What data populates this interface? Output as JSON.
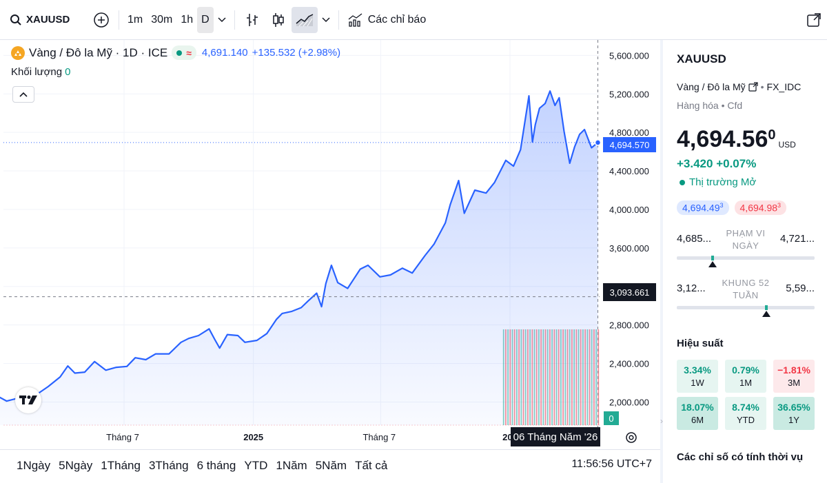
{
  "toolbar": {
    "symbol": "XAUUSD",
    "intervals": [
      "1m",
      "30m",
      "1h",
      "D"
    ],
    "active_interval": "D",
    "indicators_label": "Các chỉ báo"
  },
  "legend": {
    "title": "Vàng / Đô la Mỹ · 1D · ICE",
    "last_price": "4,691.140",
    "change": "+135.532 (+2.98%)",
    "volume_label": "Khối lượng",
    "volume_value": "0"
  },
  "chart_data": {
    "type": "area",
    "series": [
      {
        "x": [
          "2024-01-02",
          "2024-01-16",
          "2024-02-01",
          "2024-02-15",
          "2024-03-01",
          "2024-03-15",
          "2024-04-01",
          "2024-04-12",
          "2024-04-22",
          "2024-05-06",
          "2024-05-20",
          "2024-06-05",
          "2024-06-20",
          "2024-07-05",
          "2024-07-17",
          "2024-08-01",
          "2024-08-15",
          "2024-09-03",
          "2024-09-20",
          "2024-10-01",
          "2024-10-15",
          "2024-10-30",
          "2024-11-07",
          "2024-11-14",
          "2024-11-25",
          "2024-12-10",
          "2024-12-20",
          "2025-01-06",
          "2025-01-20",
          "2025-02-03",
          "2025-02-11",
          "2025-02-24",
          "2025-03-10",
          "2025-03-20",
          "2025-04-01",
          "2025-04-08",
          "2025-04-14",
          "2025-04-22",
          "2025-05-01",
          "2025-05-15",
          "2025-06-02",
          "2025-06-13",
          "2025-06-30",
          "2025-07-15",
          "2025-08-01",
          "2025-08-15",
          "2025-09-02",
          "2025-09-15",
          "2025-10-01",
          "2025-10-08",
          "2025-10-20",
          "2025-10-28",
          "2025-11-12",
          "2025-11-28",
          "2025-12-10",
          "2025-12-26",
          "2026-01-06",
          "2026-01-16",
          "2026-01-28",
          "2026-02-02",
          "2026-02-06",
          "2026-02-12",
          "2026-02-20",
          "2026-02-27",
          "2026-03-06",
          "2026-03-12",
          "2026-03-19",
          "2026-03-27",
          "2026-04-03",
          "2026-04-10",
          "2026-04-17",
          "2026-04-27",
          "2026-05-06"
        ],
        "y": [
          2065,
          2010,
          2040,
          2005,
          2090,
          2160,
          2260,
          2375,
          2300,
          2310,
          2420,
          2330,
          2360,
          2370,
          2460,
          2440,
          2500,
          2500,
          2620,
          2660,
          2690,
          2760,
          2650,
          2560,
          2700,
          2690,
          2620,
          2640,
          2710,
          2860,
          2920,
          2940,
          2980,
          3050,
          3130,
          2990,
          3230,
          3420,
          3240,
          3180,
          3380,
          3420,
          3300,
          3320,
          3390,
          3340,
          3520,
          3640,
          3860,
          4050,
          4300,
          3960,
          4200,
          4170,
          4280,
          4510,
          4450,
          4620,
          5180,
          4700,
          4880,
          5050,
          5100,
          5230,
          5080,
          5160,
          4810,
          4480,
          4650,
          4780,
          4830,
          4640,
          4694.57
        ]
      }
    ],
    "ylim": [
      1760,
      5760
    ],
    "yticks": [
      "5,600.000",
      "5,200.000",
      "4,800.000",
      "4,400.000",
      "4,000.000",
      "3,600.000",
      "3,200.000",
      "2,800.000",
      "2,400.000",
      "2,000.000"
    ],
    "xticks": [
      {
        "label": "Tháng 7",
        "date": "2024-07-01"
      },
      {
        "label": "2025",
        "date": "2025-01-01"
      },
      {
        "label": "Tháng 7",
        "date": "2025-07-01"
      },
      {
        "label": "202",
        "date": "2026-01-01"
      }
    ],
    "current_price_label": "4,694.570",
    "crosshair_price_label": "3,093.661",
    "crosshair_price": 3093.661,
    "crosshair_date": "2026-05-06",
    "crosshair_date_label": "06 Tháng Năm '26",
    "volume_label": "0",
    "volume_range": [
      "2025-12-22",
      "2026-05-06"
    ],
    "colors": {
      "line": "#2962ff",
      "fill": "#2962ff",
      "up": "#22ab94",
      "down": "#f23645"
    }
  },
  "ranges": [
    "1Ngày",
    "5Ngày",
    "1Tháng",
    "3Tháng",
    "6 tháng",
    "YTD",
    "1Năm",
    "5Năm",
    "Tất cả"
  ],
  "clock": "11:56:56 UTC+7",
  "panel": {
    "symbol": "XAUUSD",
    "description": "Vàng / Đô la Mỹ",
    "source": "FX_IDC",
    "category": "Hàng hóa",
    "type": "Cfd",
    "price_main": "4,694.56",
    "price_sup": "0",
    "currency": "USD",
    "change": "+3.420 +0.07%",
    "market_status": "Thị trường Mở",
    "bid": "4,694.49",
    "bid_sup": "3",
    "ask": "4,694.98",
    "ask_sup": "3",
    "day_range": {
      "label_1": "PHẠM VI",
      "label_2": "NGÀY",
      "low": "4,685...",
      "high": "4,721...",
      "position": 0.26
    },
    "week52_range": {
      "label_1": "KHUNG 52",
      "label_2": "TUẦN",
      "low": "3,12...",
      "high": "5,59...",
      "position": 0.65
    },
    "performance_title": "Hiệu suất",
    "performance": [
      {
        "value": "3.34%",
        "period": "1W",
        "tone": "up-light"
      },
      {
        "value": "0.79%",
        "period": "1M",
        "tone": "up-light"
      },
      {
        "value": "−1.81%",
        "period": "3M",
        "tone": "down-light"
      },
      {
        "value": "18.07%",
        "period": "6M",
        "tone": "up"
      },
      {
        "value": "8.74%",
        "period": "YTD",
        "tone": "up-light"
      },
      {
        "value": "36.65%",
        "period": "1Y",
        "tone": "up"
      }
    ],
    "seasonal_title": "Các chỉ số có tính thời vụ"
  }
}
